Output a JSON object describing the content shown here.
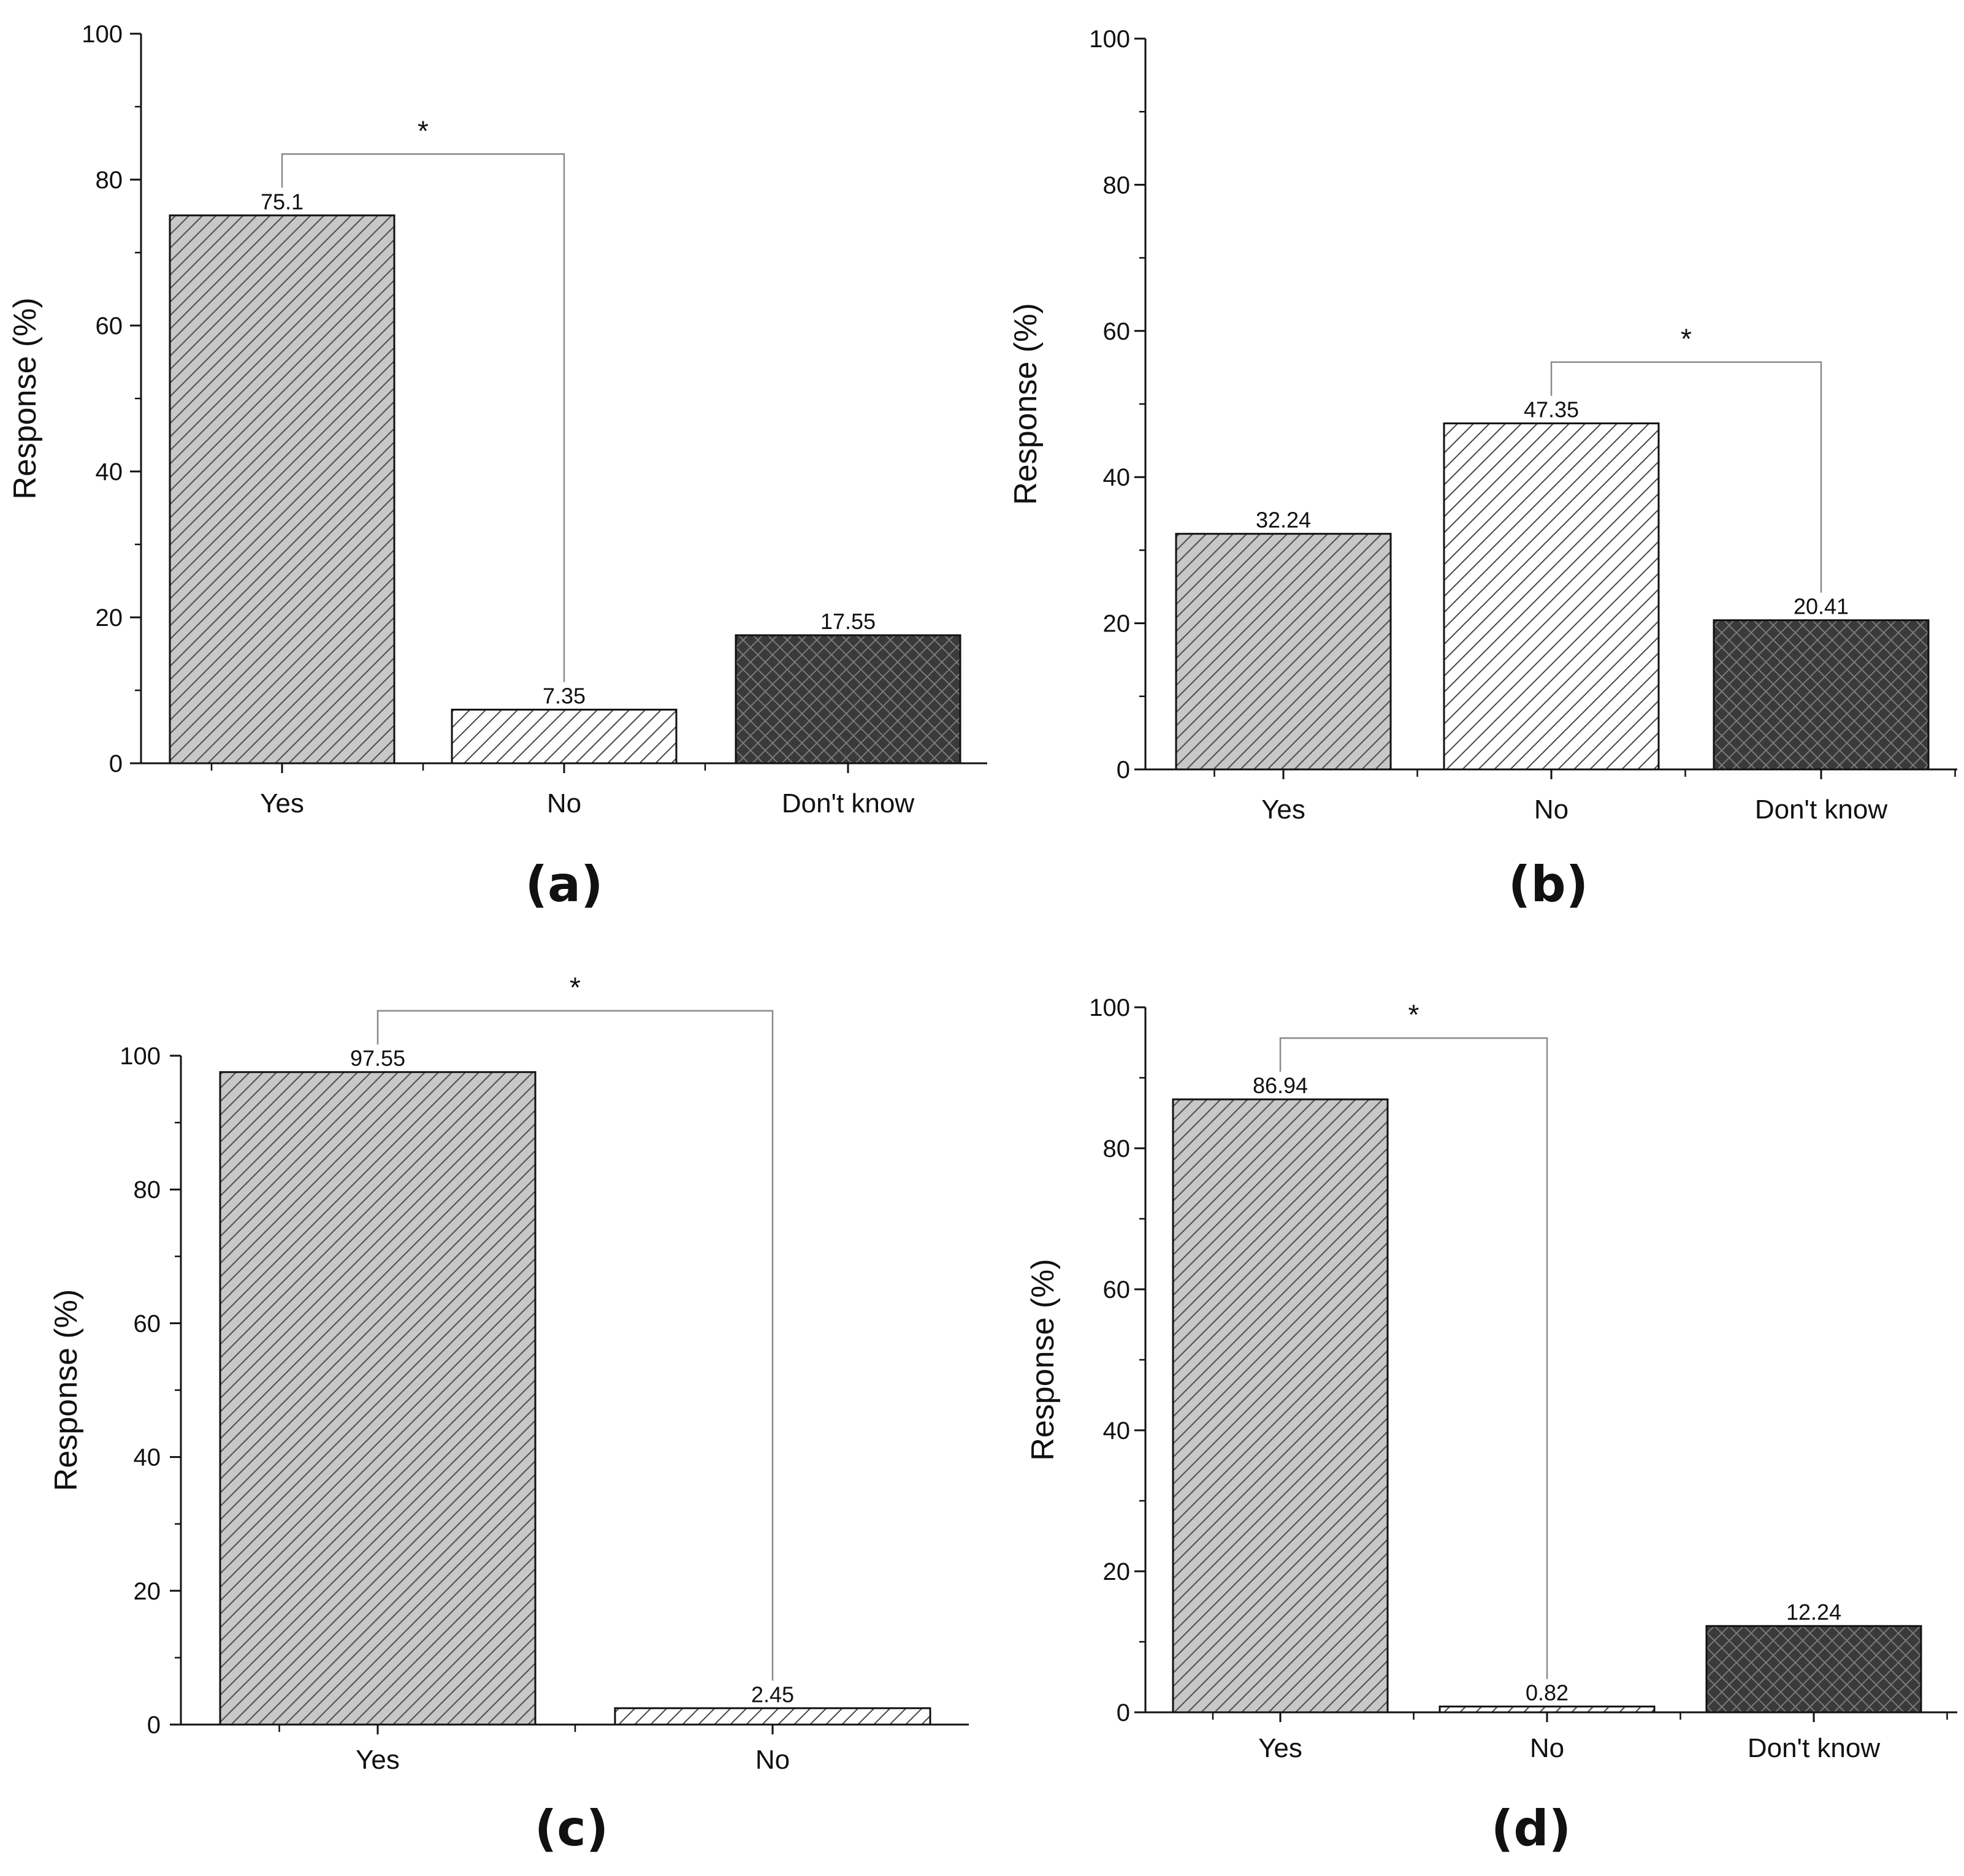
{
  "chart_data": [
    {
      "type": "bar",
      "panel_label": "(a)",
      "ylabel": "Response (%)",
      "xlabel": "",
      "ylim": [
        0,
        100
      ],
      "yticks": [
        0,
        20,
        40,
        60,
        80,
        100
      ],
      "categories": [
        "Yes",
        "No",
        "Don't know"
      ],
      "values": [
        75.1,
        7.35,
        17.55
      ],
      "value_labels": [
        "75.1",
        "7.35",
        "17.55"
      ],
      "fills": [
        "light-gray-diagonal-hatch",
        "white-diagonal-hatch",
        "dark-gray-crosshatch"
      ],
      "significance": {
        "from": 0,
        "to": 1,
        "symbol": "*"
      }
    },
    {
      "type": "bar",
      "panel_label": "(b)",
      "ylabel": "Response (%)",
      "xlabel": "",
      "ylim": [
        0,
        100
      ],
      "yticks": [
        0,
        20,
        40,
        60,
        80,
        100
      ],
      "categories": [
        "Yes",
        "No",
        "Don't know"
      ],
      "values": [
        32.24,
        47.35,
        20.41
      ],
      "value_labels": [
        "32.24",
        "47.35",
        "20.41"
      ],
      "fills": [
        "light-gray-diagonal-hatch",
        "white-diagonal-hatch",
        "dark-gray-crosshatch"
      ],
      "significance": {
        "from": 1,
        "to": 2,
        "symbol": "*"
      }
    },
    {
      "type": "bar",
      "panel_label": "(c)",
      "ylabel": "Response (%)",
      "xlabel": "",
      "ylim": [
        0,
        100
      ],
      "yticks": [
        0,
        20,
        40,
        60,
        80,
        100
      ],
      "categories": [
        "Yes",
        "No"
      ],
      "values": [
        97.55,
        2.45
      ],
      "value_labels": [
        "97.55",
        "2.45"
      ],
      "fills": [
        "light-gray-diagonal-hatch",
        "white-diagonal-hatch"
      ],
      "significance": {
        "from": 0,
        "to": 1,
        "symbol": "*"
      }
    },
    {
      "type": "bar",
      "panel_label": "(d)",
      "ylabel": "Response (%)",
      "xlabel": "",
      "ylim": [
        0,
        100
      ],
      "yticks": [
        0,
        20,
        40,
        60,
        80,
        100
      ],
      "categories": [
        "Yes",
        "No",
        "Don't know"
      ],
      "values": [
        86.94,
        0.82,
        12.24
      ],
      "value_labels": [
        "86.94",
        "0.82",
        "12.24"
      ],
      "fills": [
        "light-gray-diagonal-hatch",
        "white-diagonal-hatch",
        "dark-gray-crosshatch"
      ],
      "significance": {
        "from": 0,
        "to": 1,
        "symbol": "*"
      }
    }
  ],
  "colors": {
    "light_fill": "#c8c8c8",
    "light_hatch": "#555555",
    "white_fill": "#ffffff",
    "white_hatch": "#444444",
    "dark_fill": "#3a3a3a",
    "dark_hatch": "#7a7a7a",
    "axis": "#111111",
    "bracket": "#8a8a8a"
  }
}
